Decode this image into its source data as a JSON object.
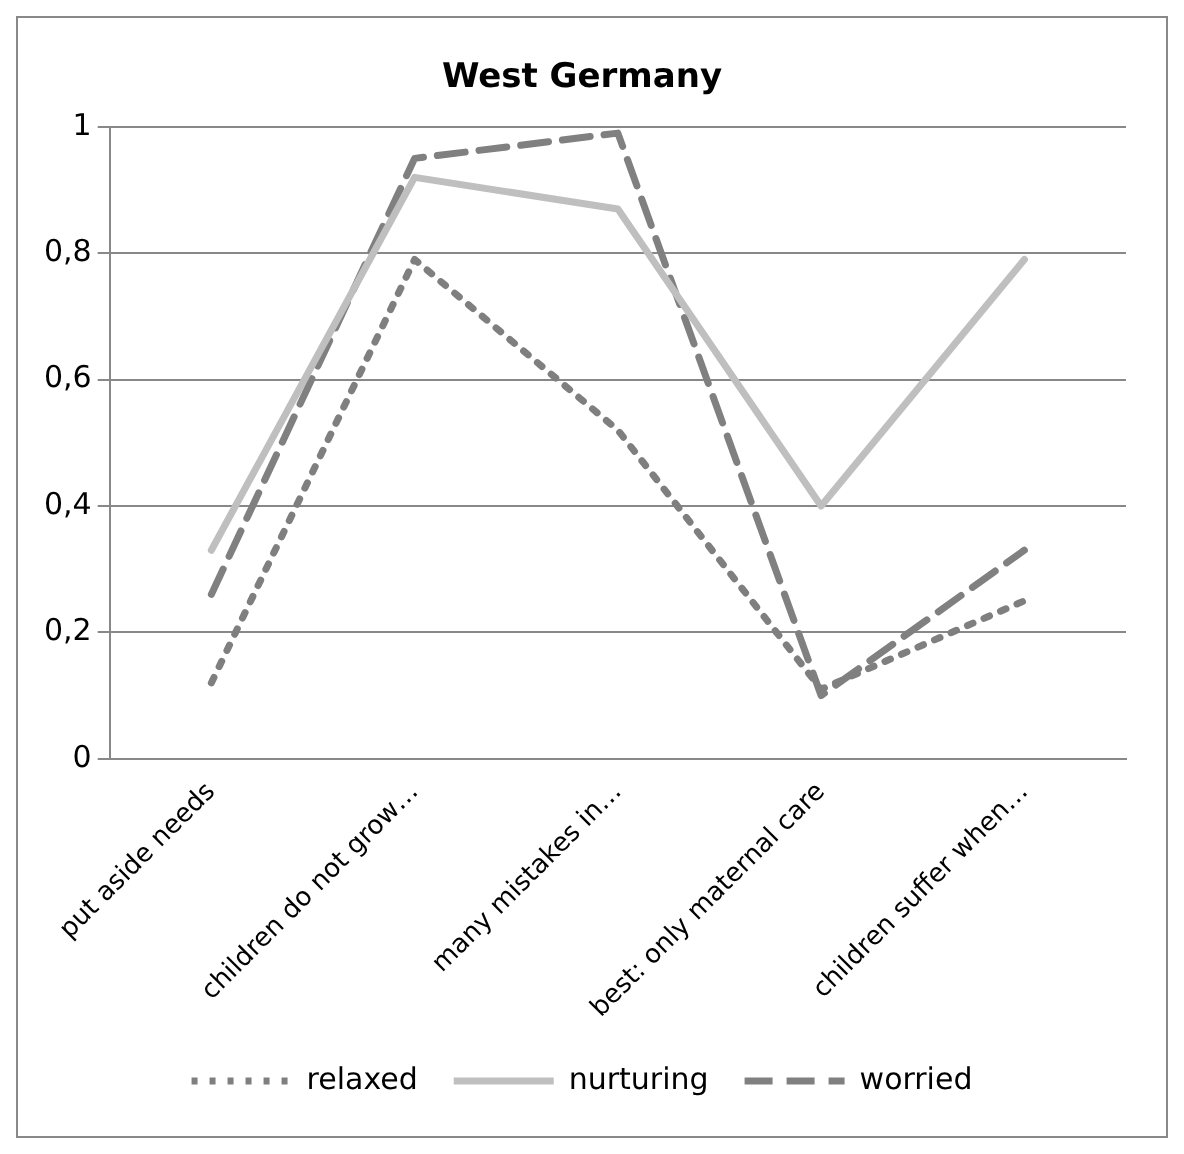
{
  "chart_data": {
    "type": "line",
    "title": "West Germany",
    "categories": [
      "put aside needs",
      "children do not grow…",
      "many mistakes in…",
      "best: only maternal care",
      "children suffer when…"
    ],
    "series": [
      {
        "name": "relaxed",
        "color": "#7f7f7f",
        "line_style": "dotted",
        "values": [
          0.12,
          0.79,
          0.52,
          0.11,
          0.25
        ]
      },
      {
        "name": "nurturing",
        "color": "#bfbfbf",
        "line_style": "solid",
        "values": [
          0.33,
          0.92,
          0.87,
          0.4,
          0.79
        ]
      },
      {
        "name": "worried",
        "color": "#808080",
        "line_style": "dashed",
        "values": [
          0.26,
          0.95,
          0.99,
          0.1,
          0.33
        ]
      }
    ],
    "ylim": [
      0,
      1
    ],
    "yticks": [
      {
        "value": 0,
        "label": "0"
      },
      {
        "value": 0.2,
        "label": "0,2"
      },
      {
        "value": 0.4,
        "label": "0,4"
      },
      {
        "value": 0.6,
        "label": "0,6"
      },
      {
        "value": 0.8,
        "label": "0,8"
      },
      {
        "value": 1,
        "label": "1"
      }
    ],
    "grid": "y",
    "legend": "bottom",
    "marker": "none"
  }
}
